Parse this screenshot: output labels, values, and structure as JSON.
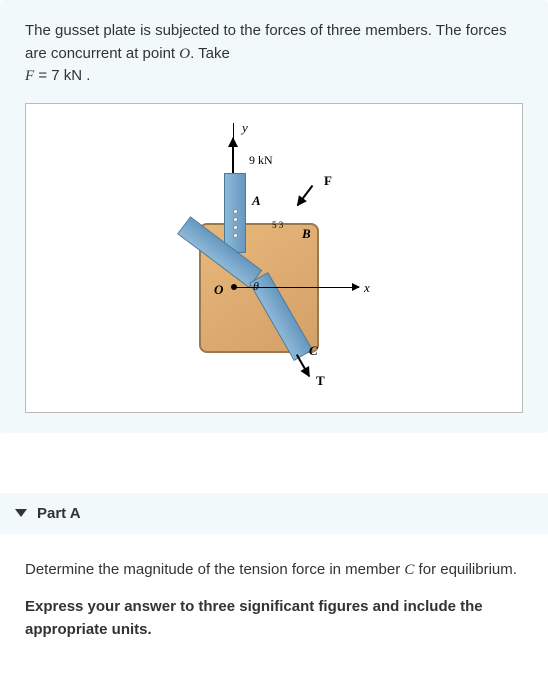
{
  "problem": {
    "text_part1": "The gusset plate is subjected to the forces of three members. The forces are concurrent at point ",
    "pointO": "O",
    "text_part2": ". Take ",
    "fVar": "F",
    "fValue": " = 7 kN .",
    "figure": {
      "y_label": "y",
      "force_9kn": "9 kN",
      "F_label": "F",
      "A_label": "A",
      "B_label": "B",
      "angle_53": "5 3",
      "O_label": "O",
      "theta_label": "θ",
      "x_label": "x",
      "C_label": "C",
      "T_label": "T",
      "colors": {
        "plate_fill": "#e8b87a",
        "member_fill": "#8fb8d8",
        "background": "#ffffff"
      }
    }
  },
  "partA": {
    "title": "Part A",
    "question_part1": "Determine the magnitude of the tension force in member ",
    "memberC": "C",
    "question_part2": " for equilibrium.",
    "instruction": "Express your answer to three significant figures and include the appropriate units."
  }
}
